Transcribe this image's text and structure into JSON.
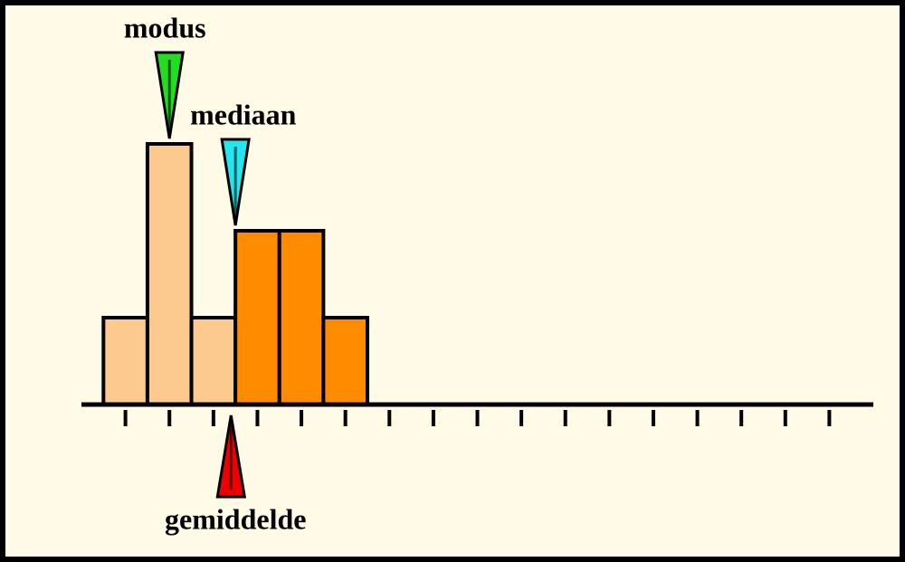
{
  "chart_data": {
    "type": "histogram",
    "bins": [
      0,
      1,
      2,
      3,
      4,
      5,
      6
    ],
    "counts": [
      1,
      3,
      1,
      2,
      2,
      1
    ],
    "colors": [
      "#fcc98e",
      "#fcc98e",
      "#fcc98e",
      "#ff8c00",
      "#ff8c00",
      "#ff8c00"
    ],
    "xlim": [
      -0.5,
      17.5
    ],
    "xticks": [
      0.5,
      1.5,
      2.5,
      3.5,
      4.5,
      5.5,
      6.5,
      7.5,
      8.5,
      9.5,
      10.5,
      11.5,
      12.5,
      13.5,
      14.5,
      15.5,
      16.5
    ],
    "ylim": [
      0,
      4.5
    ],
    "markers": [
      {
        "label": "modus",
        "value": 1.5,
        "color": "#22dd22",
        "side": "top"
      },
      {
        "label": "mediaan",
        "value": 3,
        "color": "#22e6f0",
        "side": "top"
      },
      {
        "label": "gemiddelde",
        "value": 2.9,
        "color": "#ee0000",
        "side": "bottom"
      }
    ]
  }
}
